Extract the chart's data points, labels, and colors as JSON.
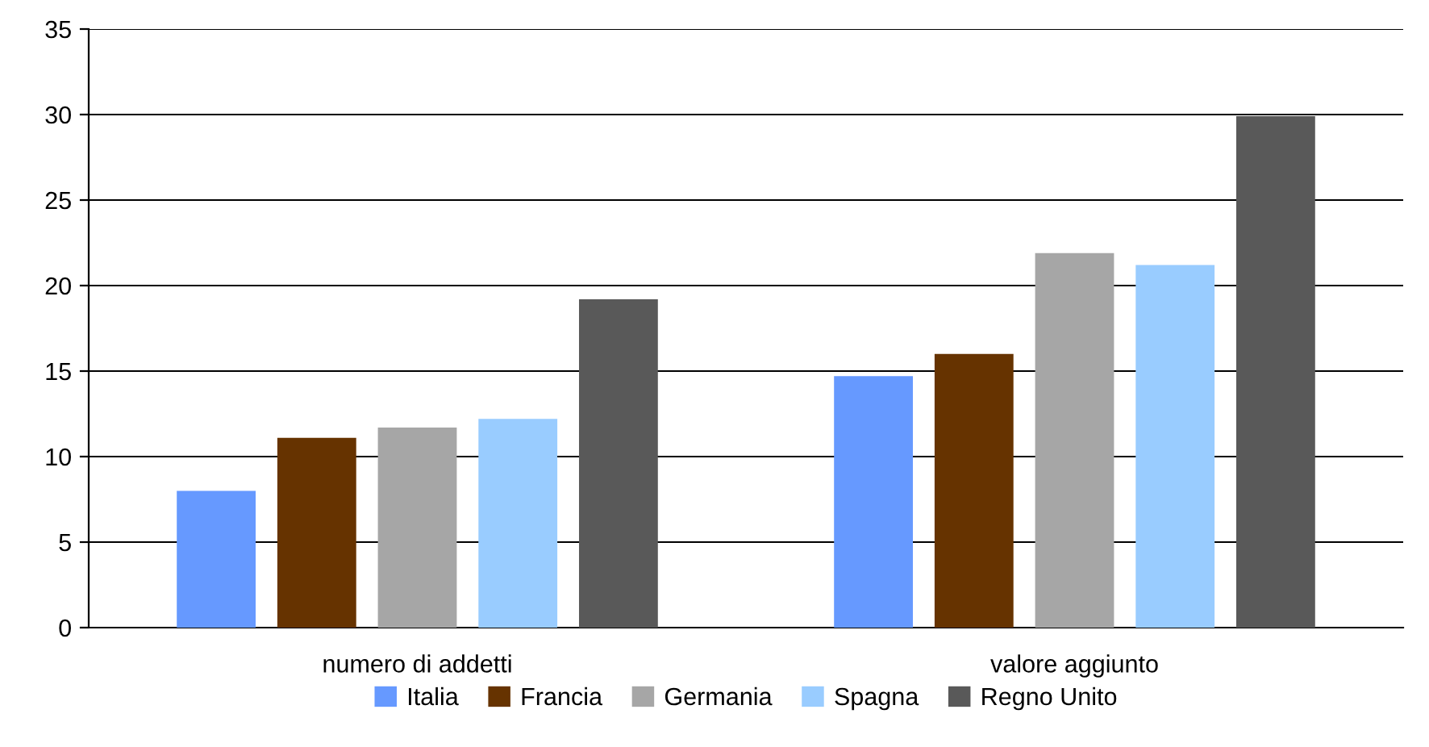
{
  "chart_data": {
    "type": "bar",
    "categories": [
      "numero di addetti",
      "valore aggiunto"
    ],
    "series": [
      {
        "name": "Italia",
        "color": "#6699ff",
        "values": [
          8.0,
          14.7
        ]
      },
      {
        "name": "Francia",
        "color": "#663300",
        "values": [
          11.1,
          16.0
        ]
      },
      {
        "name": "Germania",
        "color": "#a6a6a6",
        "values": [
          11.7,
          21.9
        ]
      },
      {
        "name": "Spagna",
        "color": "#99ccff",
        "values": [
          12.2,
          21.2
        ]
      },
      {
        "name": "Regno Unito",
        "color": "#595959",
        "values": [
          19.2,
          29.9
        ]
      }
    ],
    "ylim": [
      0,
      35
    ],
    "yticks": [
      0,
      5,
      10,
      15,
      20,
      25,
      30,
      35
    ],
    "grid": "y",
    "legend": "bottom"
  }
}
